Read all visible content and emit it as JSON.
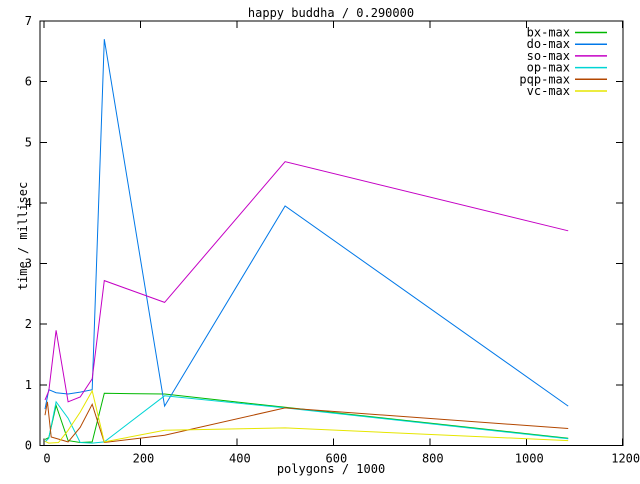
{
  "chart_data": {
    "type": "line",
    "title": "happy buddha / 0.290000",
    "xlabel": "polygons / 1000",
    "ylabel": "time / millisec",
    "xlim": [
      0,
      1200
    ],
    "ylim": [
      0,
      7
    ],
    "xticks": [
      0,
      200,
      400,
      600,
      800,
      1000,
      1200
    ],
    "yticks": [
      0,
      1,
      2,
      3,
      4,
      5,
      6,
      7
    ],
    "grid": false,
    "legend_position": "top-right-inside",
    "series": [
      {
        "name": "bx-max",
        "color": "#00b800",
        "points": [
          [
            2,
            0.1
          ],
          [
            10,
            0.13
          ],
          [
            25,
            0.66
          ],
          [
            50,
            0.08
          ],
          [
            75,
            0.05
          ],
          [
            100,
            0.06
          ],
          [
            125,
            0.86
          ],
          [
            250,
            0.85
          ],
          [
            500,
            0.63
          ],
          [
            1087,
            0.12
          ]
        ]
      },
      {
        "name": "do-max",
        "color": "#0078e8",
        "points": [
          [
            2,
            0.6
          ],
          [
            10,
            0.92
          ],
          [
            25,
            0.87
          ],
          [
            50,
            0.85
          ],
          [
            75,
            0.88
          ],
          [
            100,
            0.92
          ],
          [
            125,
            6.7
          ],
          [
            250,
            0.65
          ],
          [
            500,
            3.95
          ],
          [
            1087,
            0.65
          ]
        ]
      },
      {
        "name": "so-max",
        "color": "#c400c4",
        "points": [
          [
            2,
            0.75
          ],
          [
            10,
            0.9
          ],
          [
            25,
            1.9
          ],
          [
            50,
            0.72
          ],
          [
            75,
            0.8
          ],
          [
            100,
            1.1
          ],
          [
            125,
            2.72
          ],
          [
            250,
            2.36
          ],
          [
            500,
            4.68
          ],
          [
            1087,
            3.54
          ]
        ]
      },
      {
        "name": "op-max",
        "color": "#00d4d4",
        "points": [
          [
            2,
            0.06
          ],
          [
            10,
            0.12
          ],
          [
            25,
            0.72
          ],
          [
            50,
            0.45
          ],
          [
            75,
            0.05
          ],
          [
            100,
            0.04
          ],
          [
            125,
            0.06
          ],
          [
            250,
            0.82
          ],
          [
            500,
            0.62
          ],
          [
            1087,
            0.11
          ]
        ]
      },
      {
        "name": "pqp-max",
        "color": "#b34700",
        "points": [
          [
            2,
            0.5
          ],
          [
            7,
            0.72
          ],
          [
            15,
            0.14
          ],
          [
            50,
            0.06
          ],
          [
            75,
            0.3
          ],
          [
            100,
            0.68
          ],
          [
            125,
            0.05
          ],
          [
            250,
            0.17
          ],
          [
            500,
            0.62
          ],
          [
            1087,
            0.28
          ]
        ]
      },
      {
        "name": "vc-max",
        "color": "#e6e600",
        "points": [
          [
            2,
            0.07
          ],
          [
            10,
            0.04
          ],
          [
            30,
            0.05
          ],
          [
            50,
            0.25
          ],
          [
            75,
            0.55
          ],
          [
            100,
            0.9
          ],
          [
            125,
            0.06
          ],
          [
            250,
            0.25
          ],
          [
            500,
            0.29
          ],
          [
            1087,
            0.08
          ]
        ]
      }
    ]
  }
}
